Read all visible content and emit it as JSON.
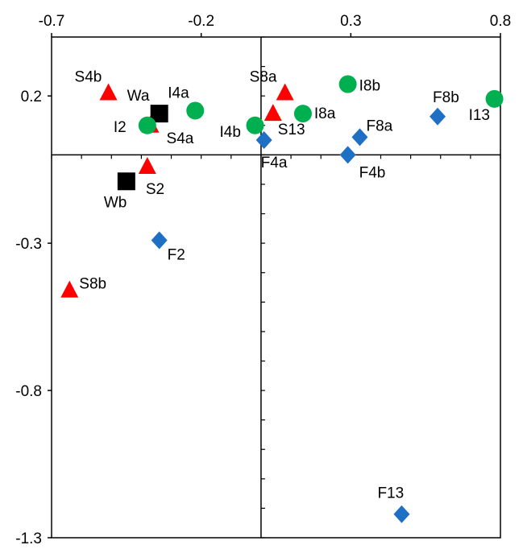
{
  "chart_data": {
    "type": "scatter",
    "title": "",
    "xlabel": "",
    "ylabel": "",
    "xlim": [
      -0.7,
      0.8
    ],
    "ylim": [
      -1.3,
      0.4
    ],
    "x_ticks": [
      -0.7,
      -0.2,
      0.3,
      0.8
    ],
    "x_tick_labels": [
      "-0.7",
      "-0.2",
      "0.3",
      "0.8"
    ],
    "y_ticks": [
      0.2,
      -0.3,
      -0.8,
      -1.3
    ],
    "y_tick_labels": [
      "0.2",
      "-0.3",
      "-0.8",
      "-1.3"
    ],
    "x_axis_position": "top",
    "grid": false,
    "legend": "none",
    "series": [
      {
        "marker": "triangle",
        "color": "#ff0000",
        "points": [
          {
            "label": "S4b",
            "x": -0.51,
            "y": 0.21
          },
          {
            "label": "S4a",
            "x": -0.37,
            "y": 0.1
          },
          {
            "label": "S2",
            "x": -0.38,
            "y": -0.04
          },
          {
            "label": "S8b",
            "x": -0.64,
            "y": -0.46
          },
          {
            "label": "S8a",
            "x": 0.08,
            "y": 0.21
          },
          {
            "label": "S13",
            "x": 0.04,
            "y": 0.14
          }
        ]
      },
      {
        "marker": "square",
        "color": "#000000",
        "points": [
          {
            "label": "Wa",
            "x": -0.34,
            "y": 0.14
          },
          {
            "label": "Wb",
            "x": -0.45,
            "y": -0.09
          }
        ]
      },
      {
        "marker": "circle",
        "color": "#00b050",
        "points": [
          {
            "label": "I4a",
            "x": -0.22,
            "y": 0.15
          },
          {
            "label": "I2",
            "x": -0.38,
            "y": 0.1
          },
          {
            "label": "I4b",
            "x": -0.02,
            "y": 0.1
          },
          {
            "label": "I8a",
            "x": 0.14,
            "y": 0.14
          },
          {
            "label": "I8b",
            "x": 0.29,
            "y": 0.24
          },
          {
            "label": "I13",
            "x": 0.78,
            "y": 0.19
          }
        ]
      },
      {
        "marker": "diamond",
        "color": "#1f6fc5",
        "points": [
          {
            "label": "F4a",
            "x": 0.01,
            "y": 0.05
          },
          {
            "label": "F8a",
            "x": 0.33,
            "y": 0.06
          },
          {
            "label": "F4b",
            "x": 0.29,
            "y": 0.0
          },
          {
            "label": "F8b",
            "x": 0.59,
            "y": 0.13
          },
          {
            "label": "F2",
            "x": -0.34,
            "y": -0.29
          },
          {
            "label": "F13",
            "x": 0.47,
            "y": -1.22
          }
        ]
      }
    ]
  }
}
